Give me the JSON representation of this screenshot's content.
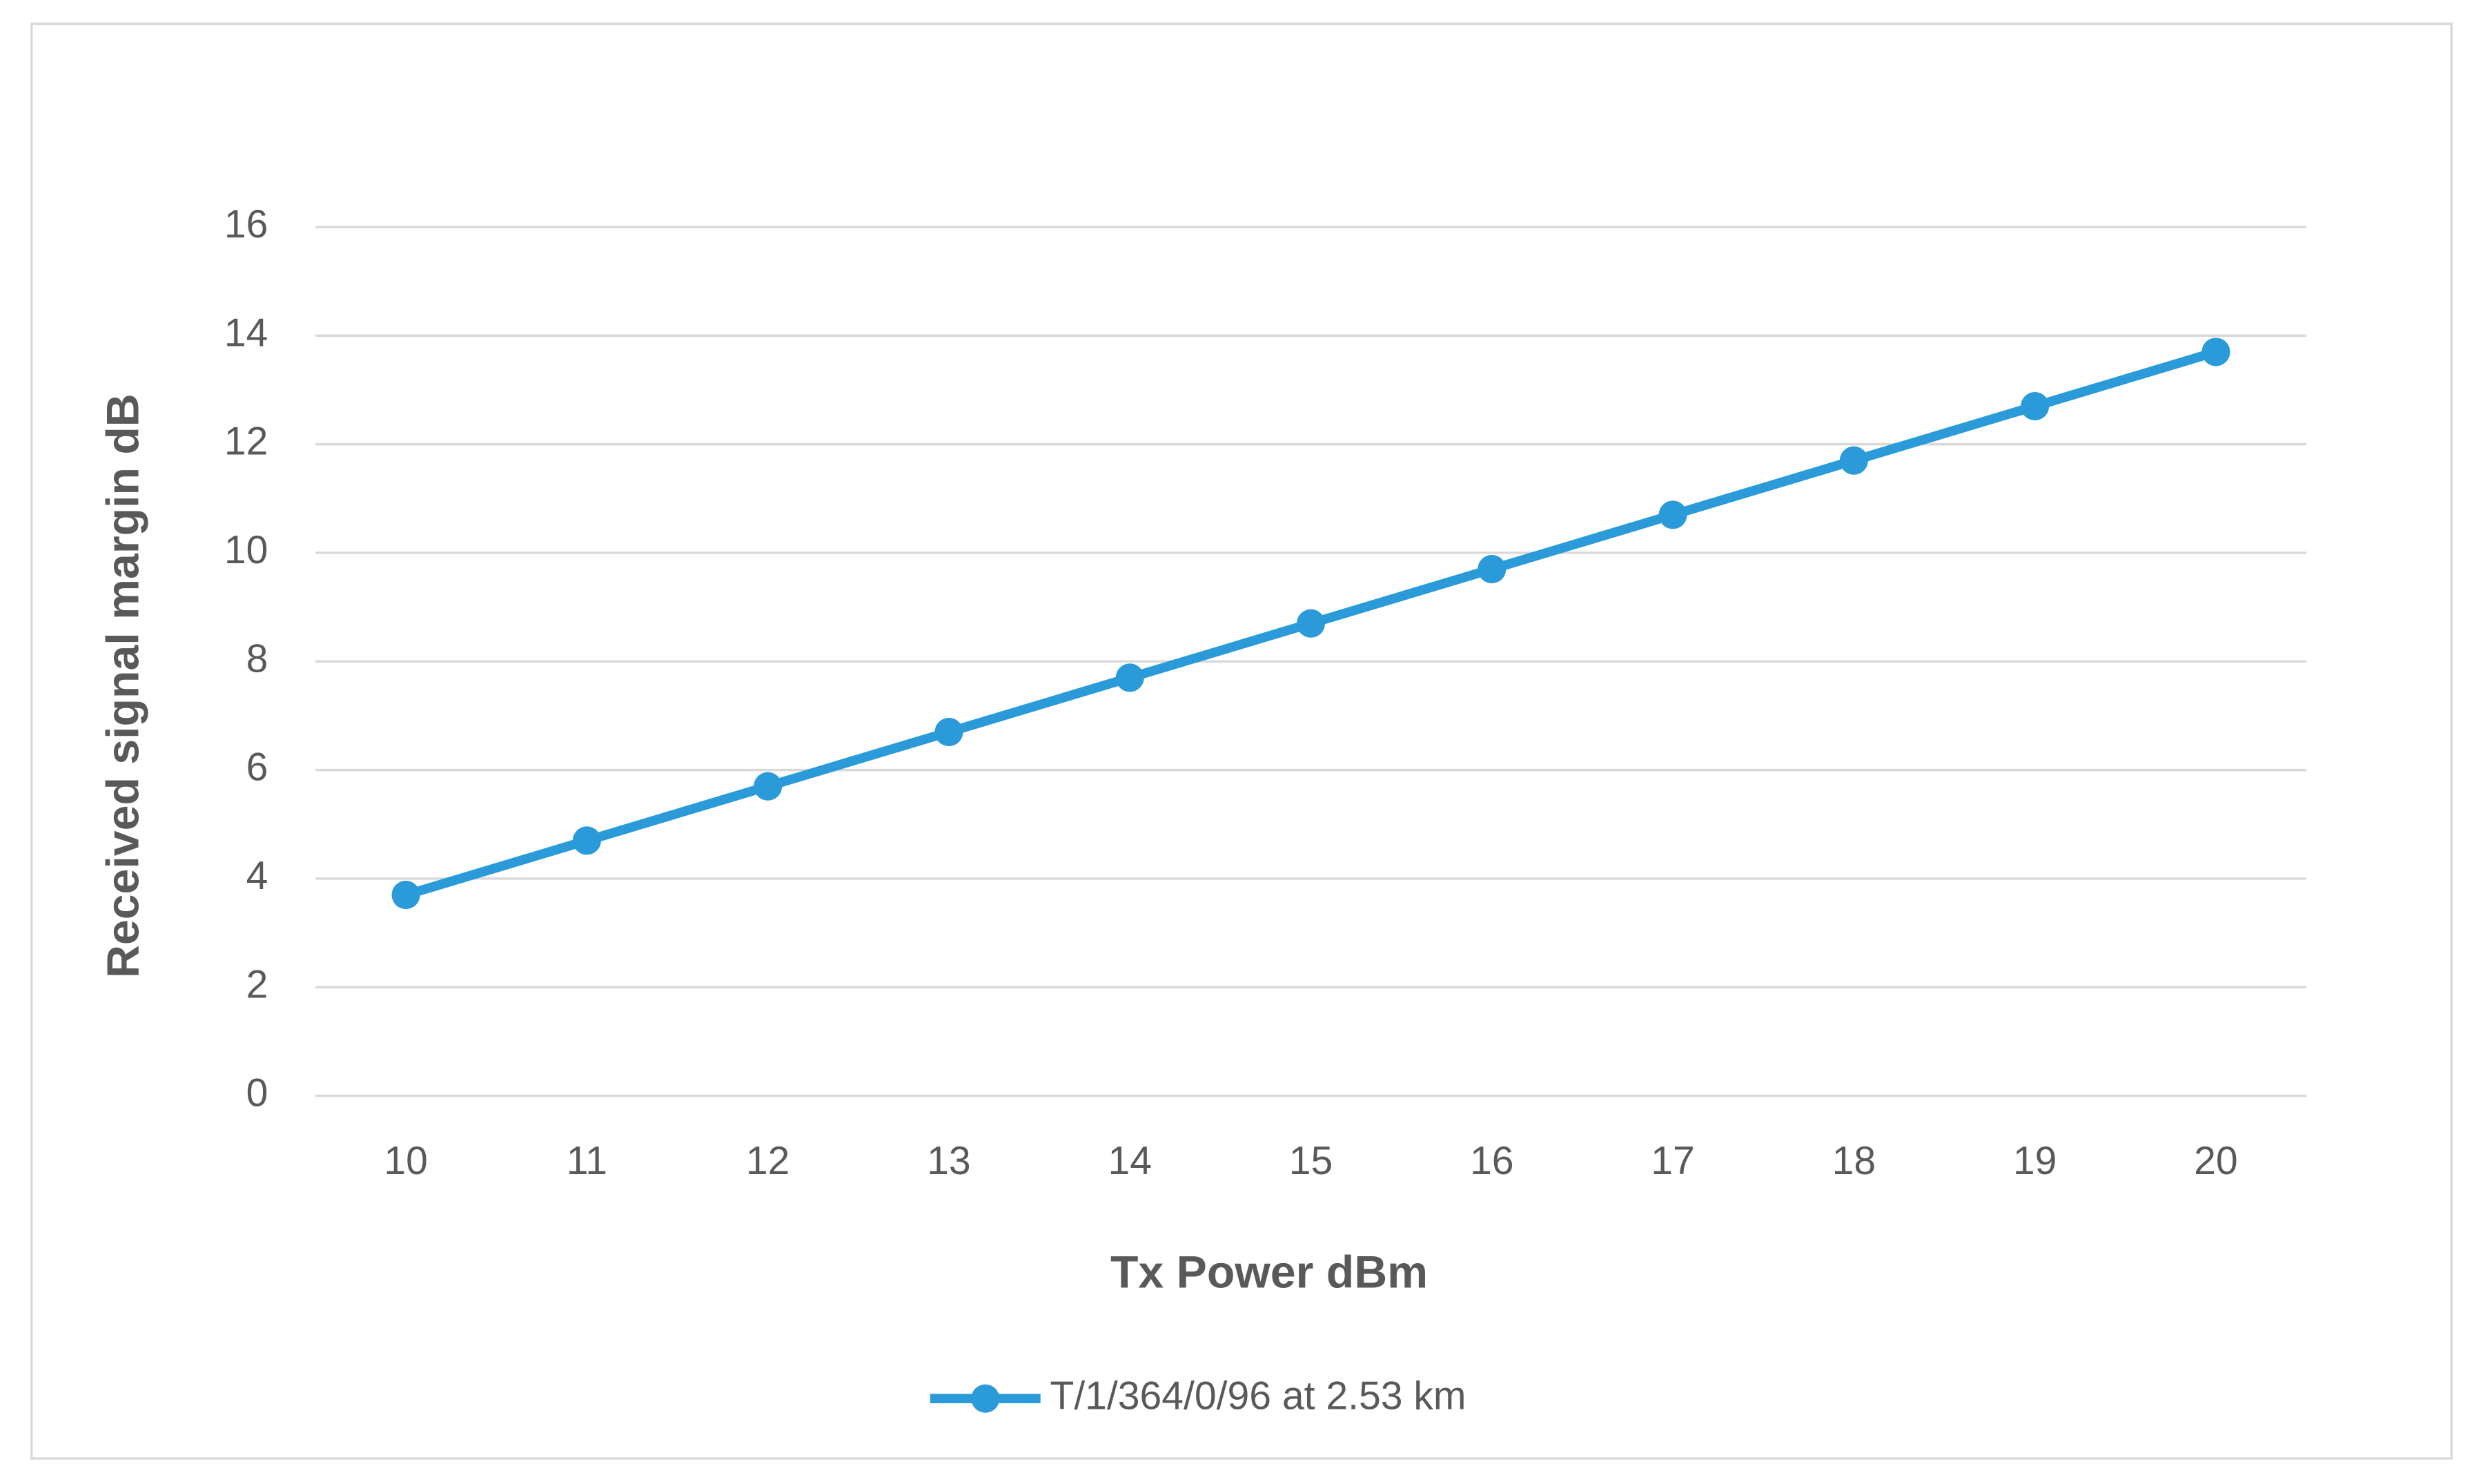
{
  "chart_data": {
    "type": "line",
    "x_label": "Tx Power dBm",
    "y_label": "Received signal margin dB",
    "categories": [
      "10",
      "11",
      "12",
      "13",
      "14",
      "15",
      "16",
      "17",
      "18",
      "19",
      "20"
    ],
    "series": [
      {
        "name": "T/1/364/0/96 at 2.53 km",
        "color": "#2a9ad8",
        "values": [
          3.7,
          4.7,
          5.7,
          6.7,
          7.7,
          8.7,
          9.7,
          10.7,
          11.7,
          12.7,
          13.7
        ]
      }
    ],
    "ylim": [
      0,
      16
    ],
    "yticks": [
      0,
      2,
      4,
      6,
      8,
      10,
      12,
      14,
      16
    ],
    "grid": true,
    "legend": "bottom"
  }
}
